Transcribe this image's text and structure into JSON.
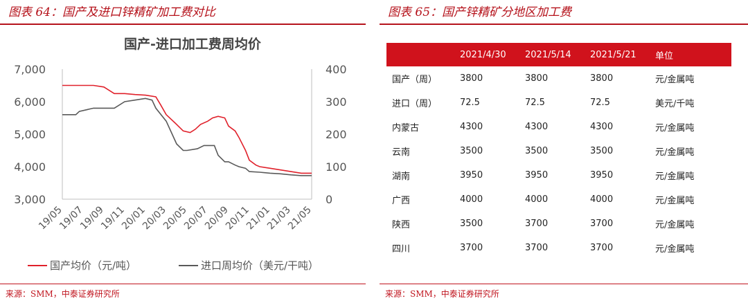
{
  "left": {
    "figure_title": "图表 64：国产及进口锌精矿加工费对比",
    "source": "来源：SMM，中泰证券研究所"
  },
  "right": {
    "figure_title": "图表 65：国产锌精矿分地区加工费",
    "source": "来源：SMM，中泰证券研究所"
  },
  "chart_data": [
    {
      "type": "line",
      "title": "国产-进口加工费周均价",
      "x_ticks": [
        "19/05",
        "19/07",
        "19/09",
        "19/11",
        "20/01",
        "20/03",
        "20/05",
        "20/07",
        "20/09",
        "20/11",
        "21/01",
        "21/03",
        "21/05"
      ],
      "x_range": [
        "2019-05",
        "2021-05"
      ],
      "y_left": {
        "ticks": [
          "7,000",
          "6,000",
          "5,000",
          "4,000",
          "3,000"
        ],
        "range": [
          3000,
          7000
        ]
      },
      "y_right": {
        "ticks": [
          "400",
          "300",
          "200",
          "100",
          "0"
        ],
        "range": [
          0,
          400
        ]
      },
      "grid": false,
      "legend_position": "bottom",
      "series": [
        {
          "name": "国产均价（元/吨）",
          "axis": "left",
          "color": "#e0202a",
          "points": [
            [
              "2019-05",
              6500
            ],
            [
              "2019-08",
              6500
            ],
            [
              "2019-09",
              6450
            ],
            [
              "2019-10",
              6250
            ],
            [
              "2019-11",
              6250
            ],
            [
              "2019-12",
              6220
            ],
            [
              "2020-01",
              6200
            ],
            [
              "2020-02",
              6150
            ],
            [
              "2020-02-15",
              5900
            ],
            [
              "2020-03",
              5600
            ],
            [
              "2020-04",
              5300
            ],
            [
              "2020-04-20",
              5100
            ],
            [
              "2020-05-10",
              5050
            ],
            [
              "2020-05-25",
              5150
            ],
            [
              "2020-06-10",
              5300
            ],
            [
              "2020-07",
              5400
            ],
            [
              "2020-07-15",
              5500
            ],
            [
              "2020-08",
              5550
            ],
            [
              "2020-08-20",
              5500
            ],
            [
              "2020-09",
              5250
            ],
            [
              "2020-09-20",
              5100
            ],
            [
              "2020-10",
              4900
            ],
            [
              "2020-10-20",
              4500
            ],
            [
              "2020-11",
              4200
            ],
            [
              "2020-11-20",
              4050
            ],
            [
              "2020-12",
              4000
            ],
            [
              "2021-01",
              3950
            ],
            [
              "2021-02",
              3900
            ],
            [
              "2021-03",
              3850
            ],
            [
              "2021-04",
              3800
            ],
            [
              "2021-05",
              3800
            ]
          ]
        },
        {
          "name": "进口周均价（美元/干吨）",
          "axis": "right",
          "color": "#595959",
          "points": [
            [
              "2019-05",
              260
            ],
            [
              "2019-06-10",
              260
            ],
            [
              "2019-06-20",
              270
            ],
            [
              "2019-07-10",
              275
            ],
            [
              "2019-08",
              280
            ],
            [
              "2019-10",
              280
            ],
            [
              "2019-11",
              300
            ],
            [
              "2019-12",
              305
            ],
            [
              "2020-01",
              310
            ],
            [
              "2020-01-20",
              305
            ],
            [
              "2020-02",
              280
            ],
            [
              "2020-03",
              240
            ],
            [
              "2020-04",
              170
            ],
            [
              "2020-04-20",
              150
            ],
            [
              "2020-05",
              150
            ],
            [
              "2020-06",
              155
            ],
            [
              "2020-06-20",
              165
            ],
            [
              "2020-07-20",
              165
            ],
            [
              "2020-08",
              135
            ],
            [
              "2020-08-20",
              115
            ],
            [
              "2020-09",
              115
            ],
            [
              "2020-09-20",
              105
            ],
            [
              "2020-10",
              100
            ],
            [
              "2020-10-20",
              95
            ],
            [
              "2020-11",
              85
            ],
            [
              "2020-12",
              83
            ],
            [
              "2021-01",
              80
            ],
            [
              "2021-02",
              78
            ],
            [
              "2021-03",
              75
            ],
            [
              "2021-04",
              72.5
            ],
            [
              "2021-05",
              72.5
            ]
          ]
        }
      ]
    },
    {
      "type": "table",
      "columns": [
        "",
        "2021/4/30",
        "2021/5/14",
        "2021/5/21",
        "单位"
      ],
      "rows": [
        [
          "国产（周）",
          "3800",
          "3800",
          "3800",
          "元/金属吨"
        ],
        [
          "进口（周）",
          "72.5",
          "72.5",
          "72.5",
          "美元/千吨"
        ],
        [
          "内蒙古",
          "4300",
          "4300",
          "4300",
          "元/金属吨"
        ],
        [
          "云南",
          "3500",
          "3500",
          "3500",
          "元/金属吨"
        ],
        [
          "湖南",
          "3950",
          "3950",
          "3950",
          "元/金属吨"
        ],
        [
          "广西",
          "4000",
          "4000",
          "4000",
          "元/金属吨"
        ],
        [
          "陕西",
          "3500",
          "3700",
          "3700",
          "元/金属吨"
        ],
        [
          "四川",
          "3700",
          "3700",
          "3700",
          "元/金属吨"
        ]
      ]
    }
  ]
}
